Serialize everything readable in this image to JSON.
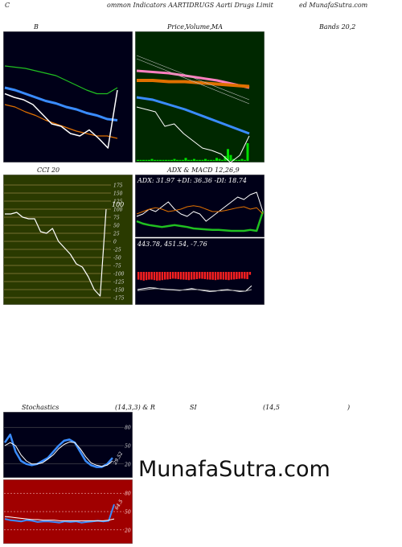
{
  "header": {
    "left": "C",
    "mid": "ommon  Indicators AARTIDRUGS Aarti  Drugs Limit",
    "right": "ed MunafaSutra.com"
  },
  "titles": {
    "b": "B",
    "price": "Price,",
    "volume": "Volume,",
    "ma": "MA",
    "bands": "Bands 20,2",
    "cci": "CCI 20",
    "adx": "ADX  & MACD 12,26,9",
    "stoch": "Stochastics",
    "stoch_params": "(14,3,3) & R",
    "rsi": "SI",
    "rsi_params": "(14,5",
    "rsi_close": ")"
  },
  "watermark": "MunafaSutra.com",
  "colors": {
    "dark_bg": "#000018",
    "green_bg": "#002800",
    "olive_bg": "#2a3a00",
    "red_bg": "#a00000",
    "blue": "#3a8cff",
    "orange": "#e07000",
    "green": "#20c020",
    "pink": "#ff80c0",
    "white": "#ffffff"
  },
  "chart_data": [
    {
      "type": "line",
      "id": "bollinger",
      "series": [
        {
          "role": "upper",
          "color": "#20c020",
          "values": [
            0.78,
            0.77,
            0.76,
            0.74,
            0.72,
            0.7,
            0.66,
            0.62,
            0.58,
            0.55,
            0.55,
            0.6
          ]
        },
        {
          "role": "middle",
          "color": "#3a8cff",
          "values": [
            0.6,
            0.58,
            0.55,
            0.52,
            0.49,
            0.47,
            0.44,
            0.42,
            0.39,
            0.37,
            0.34,
            0.33
          ]
        },
        {
          "role": "lower",
          "color": "#e07000",
          "values": [
            0.46,
            0.44,
            0.4,
            0.37,
            0.33,
            0.3,
            0.27,
            0.24,
            0.22,
            0.2,
            0.2,
            0.18
          ]
        },
        {
          "role": "price",
          "color": "#ffffff",
          "values": [
            0.55,
            0.52,
            0.5,
            0.46,
            0.38,
            0.3,
            0.28,
            0.22,
            0.2,
            0.25,
            0.18,
            0.1,
            0.58
          ]
        }
      ]
    },
    {
      "type": "line",
      "id": "price_ma",
      "series": [
        {
          "role": "ma-pink",
          "color": "#ff80c0",
          "values": [
            0.74,
            0.73,
            0.72,
            0.7,
            0.68,
            0.66,
            0.63,
            0.6
          ]
        },
        {
          "role": "ma-orange",
          "color": "#e07000",
          "values": [
            0.66,
            0.66,
            0.65,
            0.65,
            0.64,
            0.63,
            0.62,
            0.61
          ]
        },
        {
          "role": "ma-blue",
          "color": "#3a8cff",
          "values": [
            0.52,
            0.5,
            0.46,
            0.42,
            0.37,
            0.32,
            0.27,
            0.22
          ]
        },
        {
          "role": "price",
          "color": "#ffffff",
          "values": [
            0.44,
            0.42,
            0.4,
            0.28,
            0.3,
            0.22,
            0.16,
            0.1,
            0.08,
            0.05,
            -0.02,
            0.04,
            0.2
          ]
        }
      ],
      "volume": [
        1,
        1,
        1,
        1,
        1,
        2,
        1,
        1,
        1,
        1,
        1,
        1,
        1,
        2,
        1,
        1,
        1,
        3,
        1,
        1,
        2,
        1,
        1,
        1,
        2,
        1,
        1,
        1,
        3,
        2,
        1,
        5,
        12,
        6,
        2,
        1,
        1,
        2,
        1,
        18
      ]
    },
    {
      "type": "line",
      "id": "cci",
      "ticks": [
        "175",
        "150",
        "125",
        "100",
        "75",
        "50",
        "25",
        "0",
        "-25",
        "-50",
        "-75",
        "-100",
        "-125",
        "-150",
        "-175"
      ],
      "ylim": [
        -175,
        175
      ],
      "annotation": "100",
      "values": [
        85,
        85,
        90,
        75,
        70,
        70,
        30,
        25,
        40,
        0,
        -20,
        -40,
        -70,
        -80,
        -110,
        -150,
        -170,
        100
      ]
    },
    {
      "type": "line",
      "id": "adx",
      "label": "ADX: 31.97  +DI: 36.36  -DI: 18.74",
      "series": [
        {
          "role": "adx",
          "color": "#ffffff",
          "values": [
            0.4,
            0.45,
            0.55,
            0.5,
            0.6,
            0.7,
            0.55,
            0.45,
            0.4,
            0.5,
            0.45,
            0.3,
            0.4,
            0.5,
            0.6,
            0.7,
            0.8,
            0.75,
            0.85,
            0.9,
            0.5
          ]
        },
        {
          "role": "plus-di",
          "color": "#20c020",
          "values": [
            0.3,
            0.25,
            0.22,
            0.2,
            0.18,
            0.2,
            0.22,
            0.2,
            0.18,
            0.15,
            0.14,
            0.13,
            0.12,
            0.12,
            0.11,
            0.1,
            0.1,
            0.1,
            0.12,
            0.1,
            0.5
          ]
        },
        {
          "role": "minus-di",
          "color": "#e07000",
          "values": [
            0.45,
            0.5,
            0.55,
            0.58,
            0.55,
            0.5,
            0.52,
            0.55,
            0.6,
            0.62,
            0.6,
            0.55,
            0.5,
            0.5,
            0.52,
            0.55,
            0.58,
            0.6,
            0.55,
            0.58,
            0.45
          ]
        }
      ]
    },
    {
      "type": "bar",
      "id": "macd",
      "label": "443.78,  451.54,  -7.76",
      "hist": [
        0.8,
        0.85,
        0.9,
        0.85,
        0.8,
        0.8,
        0.85,
        0.9,
        0.88,
        0.85,
        0.8,
        0.78,
        0.75,
        0.7,
        0.72,
        0.75,
        0.78,
        0.8,
        0.82,
        0.85,
        0.8,
        0.78,
        0.75,
        0.7,
        0.72,
        0.75,
        0.78,
        0.8,
        0.82,
        0.85,
        0.8,
        0.78,
        0.8,
        0.82,
        0.85,
        0.8,
        0.78,
        0.75,
        0.72,
        0.7,
        0.72,
        0.75,
        0.3
      ]
    },
    {
      "type": "line",
      "id": "stochastics",
      "ticks": [
        "80",
        "50",
        "20"
      ],
      "annotation": "29.52",
      "series": [
        {
          "role": "k",
          "color": "#3a8cff",
          "values": [
            55,
            68,
            40,
            25,
            20,
            18,
            20,
            25,
            30,
            40,
            50,
            58,
            60,
            55,
            40,
            25,
            18,
            15,
            15,
            20,
            30
          ]
        },
        {
          "role": "d",
          "color": "#ffffff",
          "values": [
            50,
            55,
            50,
            35,
            25,
            20,
            20,
            22,
            28,
            35,
            45,
            52,
            56,
            55,
            45,
            32,
            22,
            18,
            16,
            18,
            25
          ]
        }
      ]
    },
    {
      "type": "line",
      "id": "rsi",
      "ticks": [
        "80",
        "50",
        "20"
      ],
      "annotation": "64.5",
      "series": [
        {
          "role": "rsi",
          "color": "#3a8cff",
          "values": [
            38,
            36,
            35,
            34,
            36,
            35,
            33,
            34,
            34,
            33,
            32,
            34,
            33,
            34,
            32,
            33,
            34,
            35,
            34,
            35,
            62
          ]
        },
        {
          "role": "rsi-ma",
          "color": "#ffffff",
          "values": [
            42,
            41,
            40,
            39,
            38,
            37,
            37,
            36,
            36,
            36,
            35,
            35,
            35,
            35,
            35,
            35,
            35,
            35,
            35,
            36,
            38
          ]
        }
      ]
    }
  ]
}
